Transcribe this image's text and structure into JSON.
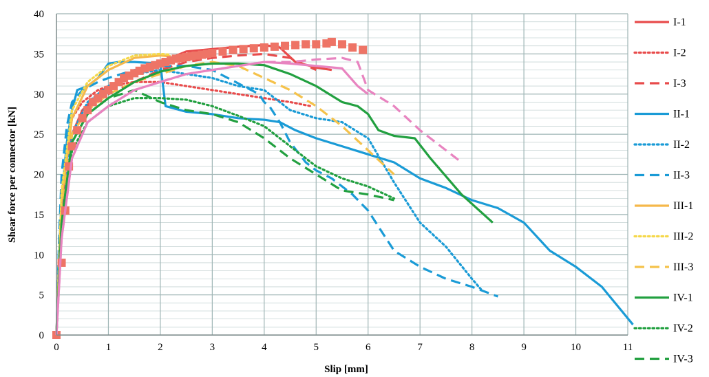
{
  "chart_data": {
    "type": "line",
    "title": "",
    "xlabel": "Slip [mm]",
    "ylabel": "Shear force per connector [kN]",
    "xlim": [
      0,
      11
    ],
    "ylim": [
      0,
      40
    ],
    "xticks": [
      "0",
      "1",
      "2",
      "3",
      "4",
      "5",
      "6",
      "7",
      "8",
      "9",
      "10",
      "11"
    ],
    "yticks": [
      "0",
      "5",
      "10",
      "15",
      "20",
      "25",
      "30",
      "35",
      "40"
    ],
    "grid": true,
    "legend_position": "right",
    "series": [
      {
        "name": "I-1",
        "color": "#e84b4b",
        "dash": "solid",
        "marker": "none",
        "x": [
          0,
          0.05,
          0.1,
          0.2,
          0.3,
          0.5,
          0.8,
          1.0,
          1.5,
          2.0,
          2.5,
          3.0,
          3.5,
          4.0,
          4.3,
          4.6,
          5.0,
          5.3
        ],
        "y": [
          0,
          10,
          16,
          22,
          25,
          28,
          30,
          31,
          32.5,
          34,
          35.3,
          35.6,
          35.9,
          36.1,
          35.8,
          34,
          33.3,
          33
        ]
      },
      {
        "name": "I-2",
        "color": "#e84b4b",
        "dash": "dotted",
        "marker": "none",
        "x": [
          0,
          0.1,
          0.2,
          0.3,
          0.5,
          0.8,
          1.0,
          1.5,
          2.0,
          2.5,
          3.0,
          3.5,
          4.0,
          4.5,
          4.9
        ],
        "y": [
          0,
          15,
          23,
          27,
          29,
          30.5,
          31,
          31.5,
          31.5,
          31,
          30.5,
          30,
          29.5,
          29,
          28.5
        ]
      },
      {
        "name": "I-3",
        "color": "#e84b4b",
        "dash": "dashed",
        "marker": "none",
        "x": [
          0,
          0.1,
          0.3,
          0.6,
          1.0,
          1.5,
          2.0,
          2.5,
          3.0,
          3.5,
          4.0,
          4.5,
          5.0
        ],
        "y": [
          0,
          15,
          25,
          28.5,
          30,
          31.5,
          33,
          34,
          34.5,
          34.8,
          35,
          34.5,
          33
        ]
      },
      {
        "name": "II-1",
        "color": "#1a9bd6",
        "dash": "solid",
        "marker": "none",
        "x": [
          0,
          0.05,
          0.1,
          0.2,
          0.3,
          0.4,
          0.6,
          0.8,
          1.0,
          1.2,
          1.5,
          2.0,
          2.1,
          2.5,
          3.0,
          3.5,
          4.0,
          4.3,
          4.6,
          5.0,
          5.5,
          6.0,
          6.5,
          7.0,
          7.5,
          8.0,
          8.5,
          9.0,
          9.5,
          10.0,
          10.5,
          11.1
        ],
        "y": [
          0,
          10,
          17,
          24,
          28,
          30.5,
          31,
          32,
          33.8,
          34,
          34,
          33.8,
          28.5,
          27.8,
          27.5,
          27,
          26.8,
          26.5,
          25.5,
          24.5,
          23.5,
          22.5,
          21.5,
          19.5,
          18.3,
          16.8,
          15.8,
          14,
          10.5,
          8.5,
          6,
          1.3
        ]
      },
      {
        "name": "II-2",
        "color": "#1a9bd6",
        "dash": "dotted",
        "marker": "none",
        "x": [
          0,
          0.1,
          0.3,
          0.6,
          1.0,
          1.5,
          2.0,
          2.5,
          3.0,
          3.5,
          4.0,
          4.5,
          5.0,
          5.5,
          6.0,
          6.5,
          7.0,
          7.5,
          8.0,
          8.2
        ],
        "y": [
          0,
          14,
          25,
          29,
          31,
          32.5,
          33,
          32.5,
          32,
          31,
          30.5,
          28,
          27,
          26.5,
          24.5,
          19,
          14,
          11,
          7,
          5.5
        ]
      },
      {
        "name": "II-3",
        "color": "#1a9bd6",
        "dash": "dashed",
        "marker": "none",
        "x": [
          0,
          0.05,
          0.1,
          0.2,
          0.3,
          0.5,
          0.8,
          1.0,
          1.5,
          2.0,
          2.5,
          3.0,
          3.3,
          3.6,
          3.9,
          4.0,
          4.1,
          4.3,
          4.5,
          4.8,
          5.0,
          5.3,
          5.7,
          6.0,
          6.3,
          6.5,
          7.0,
          7.5,
          8.0,
          8.5
        ],
        "y": [
          0,
          12,
          20,
          26,
          29,
          30.5,
          31.5,
          32,
          33,
          33.5,
          33.5,
          33,
          32,
          31,
          30,
          29,
          28.5,
          26.5,
          24,
          21.5,
          20.5,
          19.5,
          17.5,
          15.5,
          12.5,
          10.5,
          8.5,
          7,
          6,
          4.8
        ]
      },
      {
        "name": "III-1",
        "color": "#f5b84a",
        "dash": "solid",
        "marker": "none",
        "x": [
          0,
          0.1,
          0.3,
          0.6,
          1.0,
          1.5,
          2.0,
          2.2
        ],
        "y": [
          0,
          17,
          27,
          31,
          33,
          34.5,
          34.8,
          34.7
        ]
      },
      {
        "name": "III-2",
        "color": "#f5d84a",
        "dash": "dotted",
        "marker": "none",
        "x": [
          0,
          0.1,
          0.3,
          0.6,
          1.0,
          1.5,
          2.0,
          2.2
        ],
        "y": [
          0,
          18,
          28,
          31.5,
          33.5,
          34.8,
          35,
          34.9
        ]
      },
      {
        "name": "III-3",
        "color": "#f5c24a",
        "dash": "dashed",
        "marker": "none",
        "x": [
          0,
          0.1,
          0.3,
          0.6,
          1.0,
          1.5,
          2.0,
          2.5,
          3.0,
          3.5,
          4.0,
          4.5,
          5.0,
          5.5,
          6.0,
          6.5
        ],
        "y": [
          0,
          15,
          25,
          28,
          30,
          31.5,
          32.5,
          33.5,
          34,
          33.5,
          32,
          30.5,
          28.5,
          26,
          23,
          20
        ]
      },
      {
        "name": "IV-1",
        "color": "#22a040",
        "dash": "solid",
        "marker": "none",
        "x": [
          0,
          0.1,
          0.3,
          0.6,
          1.0,
          1.5,
          2.0,
          2.5,
          3.0,
          3.5,
          4.0,
          4.5,
          5.0,
          5.5,
          5.8,
          6.0,
          6.2,
          6.5,
          6.9,
          7.2,
          7.8,
          8.4
        ],
        "y": [
          0,
          14,
          24,
          27.5,
          29.5,
          31.5,
          32.8,
          33.5,
          33.8,
          33.8,
          33.6,
          32.5,
          31,
          29,
          28.5,
          27.5,
          25.5,
          24.8,
          24.5,
          22,
          17.5,
          14
        ]
      },
      {
        "name": "IV-2",
        "color": "#22a040",
        "dash": "dotted",
        "marker": "none",
        "x": [
          0,
          0.1,
          0.3,
          0.6,
          1.0,
          1.5,
          2.0,
          2.5,
          3.0,
          3.5,
          4.0,
          4.5,
          5.0,
          5.5,
          6.0,
          6.5
        ],
        "y": [
          0,
          13,
          23,
          26.5,
          28.5,
          29.5,
          29.5,
          29.3,
          28.5,
          27.3,
          26,
          23.5,
          21,
          19.5,
          18.5,
          17
        ]
      },
      {
        "name": "IV-3",
        "color": "#22a040",
        "dash": "dashed",
        "marker": "none",
        "x": [
          0,
          0.1,
          0.3,
          0.6,
          1.0,
          1.5,
          2.0,
          2.5,
          3.0,
          3.5,
          4.0,
          4.5,
          5.0,
          5.5,
          6.0,
          6.5
        ],
        "y": [
          0,
          14,
          24,
          27.5,
          29.5,
          30.5,
          29,
          28,
          27.5,
          26.5,
          24.5,
          22,
          20,
          18,
          17.5,
          16.8
        ]
      },
      {
        "name": "",
        "color": "#ee7466",
        "dash": "none",
        "marker": "square",
        "x": [
          0,
          0.1,
          0.17,
          0.24,
          0.3,
          0.4,
          0.5,
          0.6,
          0.7,
          0.8,
          0.9,
          1.0,
          1.1,
          1.2,
          1.3,
          1.4,
          1.5,
          1.6,
          1.7,
          1.8,
          1.9,
          2.0,
          2.1,
          2.2,
          2.3,
          2.4,
          2.5,
          2.6,
          2.7,
          2.8,
          2.9,
          3.0,
          3.2,
          3.4,
          3.6,
          3.8,
          4.0,
          4.2,
          4.4,
          4.6,
          4.8,
          5.0,
          5.2,
          5.3,
          5.5,
          5.7,
          5.9
        ],
        "y": [
          0,
          9,
          15.5,
          21,
          23.5,
          25.5,
          27,
          28,
          29,
          29.5,
          30,
          30.5,
          31,
          31.5,
          32,
          32.3,
          32.6,
          32.9,
          33.2,
          33.4,
          33.6,
          33.8,
          34,
          34.2,
          34.4,
          34.5,
          34.6,
          34.7,
          34.8,
          34.9,
          35,
          35.1,
          35.3,
          35.5,
          35.6,
          35.7,
          35.8,
          35.9,
          36,
          36.1,
          36.2,
          36.2,
          36.3,
          36.5,
          36.2,
          35.8,
          35.5
        ]
      },
      {
        "name": "",
        "color": "#e884c0",
        "dash": "solid",
        "marker": "none",
        "x": [
          0,
          0.1,
          0.3,
          0.6,
          1.0,
          1.5,
          2.0,
          2.5,
          3.0,
          3.5,
          4.0,
          4.5,
          5.0,
          5.5,
          5.8,
          6.0
        ],
        "y": [
          0,
          12,
          22,
          26.5,
          28.5,
          30.5,
          31.5,
          32.5,
          33,
          33.5,
          34,
          33.8,
          33.5,
          33.2,
          31,
          30
        ]
      },
      {
        "name": "",
        "color": "#e884c0",
        "dash": "dashed",
        "marker": "none",
        "x": [
          0,
          0.1,
          0.3,
          0.6,
          1.0,
          1.5,
          2.0,
          2.5,
          3.0,
          3.5,
          4.0,
          4.5,
          5.0,
          5.5,
          5.8,
          6.0,
          6.5,
          7.0,
          7.5,
          7.8
        ],
        "y": [
          0,
          12,
          22,
          26.5,
          28.5,
          30.5,
          31.5,
          32.5,
          33,
          33.5,
          34,
          34,
          34.3,
          34.5,
          34,
          30.5,
          28.5,
          25.5,
          23,
          21.5
        ]
      }
    ]
  }
}
